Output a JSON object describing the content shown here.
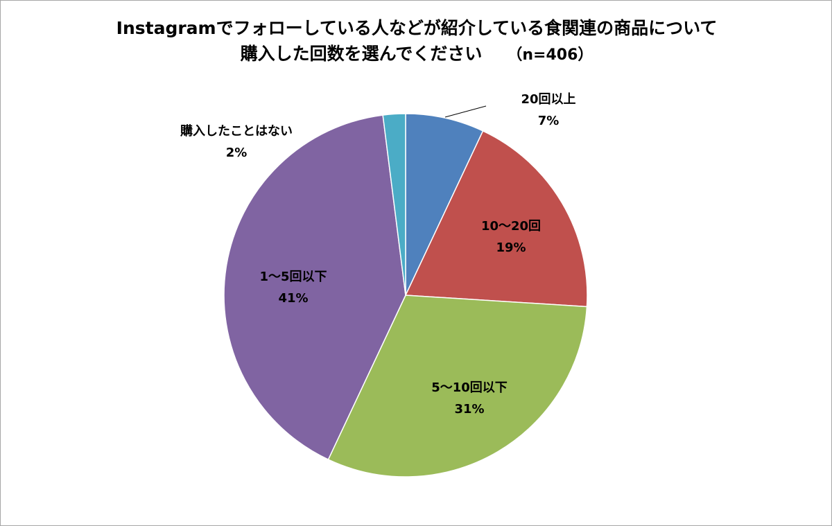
{
  "chart_data": {
    "type": "pie",
    "title": "Instagramでフォローしている人などが紹介している食関連の商品について",
    "subtitle": "購入した回数を選んでください",
    "sample_size": "（n=406）",
    "start_angle_deg": 0,
    "direction": "clockwise",
    "slices": [
      {
        "label": "20回以上",
        "value": 7,
        "value_label": "7%",
        "color": "#4f81bd"
      },
      {
        "label": "10～20回",
        "value": 19,
        "value_label": "19%",
        "color": "#c0504d"
      },
      {
        "label": "5～10回以下",
        "value": 31,
        "value_label": "31%",
        "color": "#9bbb59"
      },
      {
        "label": "1～5回以下",
        "value": 41,
        "value_label": "41%",
        "color": "#8064a2"
      },
      {
        "label": "購入したことはない",
        "value": 2,
        "value_label": "2%",
        "color": "#4bacc6"
      }
    ]
  }
}
